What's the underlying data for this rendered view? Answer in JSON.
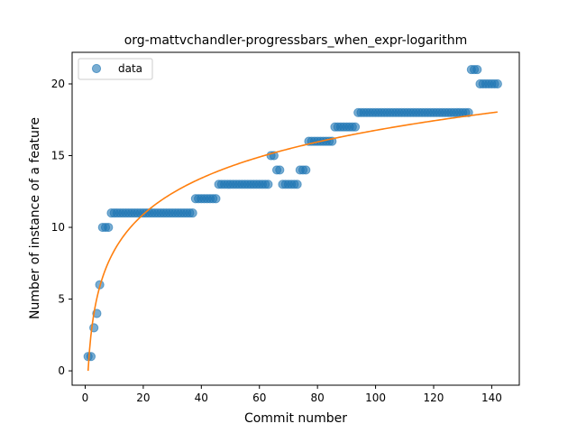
{
  "chart_data": {
    "type": "scatter",
    "title": "org-mattvchandler-progressbars_when_expr-logarithm",
    "xlabel": "Commit number",
    "ylabel": "Number of instance of a feature",
    "xlim": [
      -4.5,
      149.5
    ],
    "ylim": [
      -1.0,
      22.2
    ],
    "xticks": [
      0,
      20,
      40,
      60,
      80,
      100,
      120,
      140
    ],
    "yticks": [
      0,
      5,
      10,
      15,
      20
    ],
    "grid": false,
    "legend": {
      "placement": "top-left",
      "entries": [
        "data"
      ]
    },
    "colors": {
      "data": "#1f77b4",
      "fit": "#ff7f0e"
    },
    "series": [
      {
        "name": "data",
        "kind": "scatter",
        "runs": [
          {
            "x_start": 1,
            "x_end": 2,
            "y": 1
          },
          {
            "x_start": 3,
            "x_end": 3,
            "y": 3
          },
          {
            "x_start": 4,
            "x_end": 4,
            "y": 4
          },
          {
            "x_start": 5,
            "x_end": 5,
            "y": 6
          },
          {
            "x_start": 6,
            "x_end": 8,
            "y": 10
          },
          {
            "x_start": 9,
            "x_end": 37,
            "y": 11
          },
          {
            "x_start": 38,
            "x_end": 45,
            "y": 12
          },
          {
            "x_start": 46,
            "x_end": 63,
            "y": 13
          },
          {
            "x_start": 64,
            "x_end": 65,
            "y": 15
          },
          {
            "x_start": 66,
            "x_end": 67,
            "y": 14
          },
          {
            "x_start": 68,
            "x_end": 73,
            "y": 13
          },
          {
            "x_start": 74,
            "x_end": 76,
            "y": 14
          },
          {
            "x_start": 77,
            "x_end": 85,
            "y": 16
          },
          {
            "x_start": 86,
            "x_end": 93,
            "y": 17
          },
          {
            "x_start": 94,
            "x_end": 132,
            "y": 18
          },
          {
            "x_start": 133,
            "x_end": 135,
            "y": 21
          },
          {
            "x_start": 136,
            "x_end": 142,
            "y": 20
          }
        ]
      },
      {
        "name": "",
        "kind": "line",
        "model": "logarithmic",
        "a": 3.64,
        "b": 0.0,
        "x_range": [
          1,
          142
        ]
      }
    ]
  }
}
